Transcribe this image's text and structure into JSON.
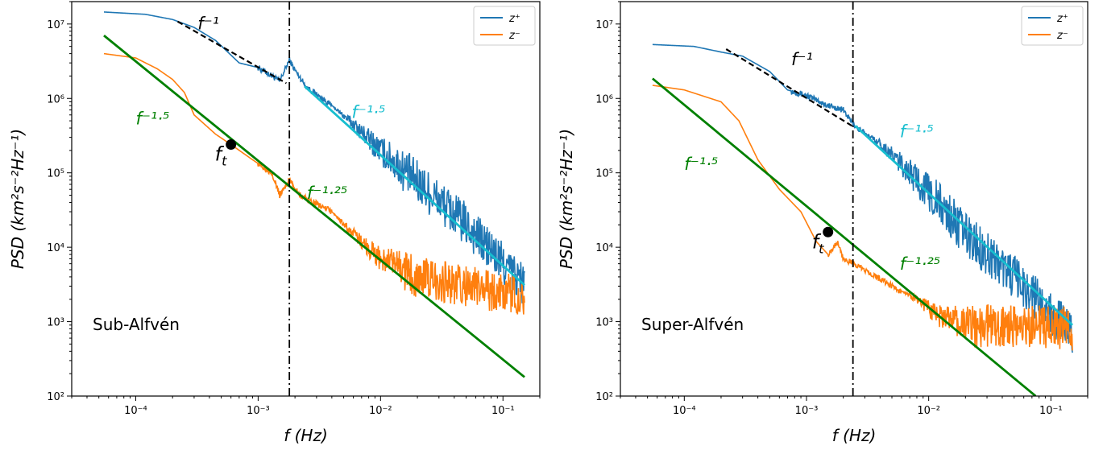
{
  "chart_data": [
    {
      "type": "line",
      "panel_label": "Sub-Alfvén",
      "xlabel": "f (Hz)",
      "ylabel": "PSD (km²s⁻²Hz⁻¹)",
      "xscale": "log",
      "yscale": "log",
      "xlim": [
        3e-05,
        0.2
      ],
      "ylim": [
        100,
        20000000
      ],
      "x_ticks": [
        {
          "value": 0.0001,
          "label": "10⁻⁴"
        },
        {
          "value": 0.001,
          "label": "10⁻³"
        },
        {
          "value": 0.01,
          "label": "10⁻²"
        },
        {
          "value": 0.1,
          "label": "10⁻¹"
        }
      ],
      "y_ticks": [
        {
          "value": 100,
          "label": "10²"
        },
        {
          "value": 1000,
          "label": "10³"
        },
        {
          "value": 10000,
          "label": "10⁴"
        },
        {
          "value": 100000,
          "label": "10⁵"
        },
        {
          "value": 1000000,
          "label": "10⁶"
        },
        {
          "value": 10000000,
          "label": "10⁷"
        }
      ],
      "legend": {
        "placement": "top-right",
        "entries": [
          {
            "label": "z⁺",
            "color": "#1f77b4"
          },
          {
            "label": "z⁻",
            "color": "#ff7f0e"
          }
        ]
      },
      "series": [
        {
          "name": "z⁺",
          "color": "#1f77b4",
          "x_range": [
            5.5e-05,
            0.15
          ],
          "anchors": [
            [
              5.5e-05,
              14500000
            ],
            [
              0.00012,
              13500000
            ],
            [
              0.0002,
              11500000
            ],
            [
              0.0003,
              9000000
            ],
            [
              0.00045,
              6000000
            ],
            [
              0.0007,
              3000000
            ],
            [
              0.001,
              2600000
            ],
            [
              0.0013,
              2000000
            ],
            [
              0.0015,
              1700000
            ],
            [
              0.0018,
              3300000
            ],
            [
              0.002,
              2400000
            ],
            [
              0.0025,
              1400000
            ],
            [
              0.004,
              800000
            ],
            [
              0.006,
              450000
            ],
            [
              0.01,
              200000
            ],
            [
              0.02,
              75000
            ],
            [
              0.05,
              20000
            ],
            [
              0.1,
              6000
            ],
            [
              0.15,
              3200
            ]
          ],
          "noise_onset": 0.004,
          "noise_amp": 0.3
        },
        {
          "name": "z⁻",
          "color": "#ff7f0e",
          "x_range": [
            5.5e-05,
            0.15
          ],
          "anchors": [
            [
              5.5e-05,
              4000000
            ],
            [
              0.0001,
              3500000
            ],
            [
              0.00015,
              2500000
            ],
            [
              0.0002,
              1800000
            ],
            [
              0.00025,
              1200000
            ],
            [
              0.0003,
              600000
            ],
            [
              0.00045,
              330000
            ],
            [
              0.0006,
              240000
            ],
            [
              0.0009,
              150000
            ],
            [
              0.0013,
              100000
            ],
            [
              0.0015,
              50000
            ],
            [
              0.0018,
              80000
            ],
            [
              0.0022,
              50000
            ],
            [
              0.004,
              30000
            ],
            [
              0.006,
              15000
            ],
            [
              0.01,
              7000
            ],
            [
              0.02,
              4000
            ],
            [
              0.05,
              3000
            ],
            [
              0.15,
              2200
            ]
          ],
          "noise_onset": 0.004,
          "noise_amp": 0.28
        }
      ],
      "fits": [
        {
          "label": "f⁻¹",
          "color": "#000000",
          "dash": true,
          "x": [
            0.00022,
            0.0017
          ],
          "y": [
            10800000,
            1600000
          ]
        },
        {
          "label": "f⁻¹·⁵",
          "color": "#17becf",
          "dash": false,
          "x": [
            0.0024,
            0.15
          ],
          "y": [
            1450000,
            3100
          ]
        },
        {
          "label": "f⁻¹·⁵",
          "color": "#008000",
          "dash": false,
          "x": [
            5.5e-05,
            0.15
          ],
          "y": [
            7000000,
            180
          ]
        },
        {
          "label": "f⁻¹·²⁵",
          "color": "#008000",
          "dash": false,
          "x": null,
          "y": null
        }
      ],
      "annotations": [
        {
          "text": "f⁻¹",
          "color": "#000000",
          "x": 0.00032,
          "y": 8500000
        },
        {
          "text": "f⁻¹·⁵",
          "color": "#17becf",
          "x": 0.0058,
          "y": 550000
        },
        {
          "text": "f⁻¹·⁵",
          "color": "#008000",
          "x": 0.0001,
          "y": 450000
        },
        {
          "text": "f⁻¹·²⁵",
          "color": "#008000",
          "x": 0.0025,
          "y": 45000
        }
      ],
      "marker": {
        "label": "f_t",
        "x": 0.0006,
        "y": 240000
      },
      "vline_x": 0.0018
    },
    {
      "type": "line",
      "panel_label": "Super-Alfvén",
      "xlabel": "f (Hz)",
      "ylabel": "PSD (km²s⁻²Hz⁻¹)",
      "xscale": "log",
      "yscale": "log",
      "xlim": [
        3e-05,
        0.2
      ],
      "ylim": [
        100,
        20000000
      ],
      "x_ticks": [
        {
          "value": 0.0001,
          "label": "10⁻⁴"
        },
        {
          "value": 0.001,
          "label": "10⁻³"
        },
        {
          "value": 0.01,
          "label": "10⁻²"
        },
        {
          "value": 0.1,
          "label": "10⁻¹"
        }
      ],
      "y_ticks": [
        {
          "value": 100,
          "label": "10²"
        },
        {
          "value": 1000,
          "label": "10³"
        },
        {
          "value": 10000,
          "label": "10⁴"
        },
        {
          "value": 100000,
          "label": "10⁵"
        },
        {
          "value": 1000000,
          "label": "10⁶"
        },
        {
          "value": 10000000,
          "label": "10⁷"
        }
      ],
      "legend": {
        "placement": "top-right",
        "entries": [
          {
            "label": "z⁺",
            "color": "#1f77b4"
          },
          {
            "label": "z⁻",
            "color": "#ff7f0e"
          }
        ]
      },
      "series": [
        {
          "name": "z⁺",
          "color": "#1f77b4",
          "x_range": [
            5.5e-05,
            0.15
          ],
          "anchors": [
            [
              5.5e-05,
              5300000
            ],
            [
              0.00012,
              5000000
            ],
            [
              0.0002,
              4200000
            ],
            [
              0.0003,
              3700000
            ],
            [
              0.0005,
              2300000
            ],
            [
              0.0007,
              1300000
            ],
            [
              0.001,
              1100000
            ],
            [
              0.0015,
              800000
            ],
            [
              0.002,
              700000
            ],
            [
              0.0023,
              500000
            ],
            [
              0.0026,
              400000
            ],
            [
              0.004,
              250000
            ],
            [
              0.006,
              130000
            ],
            [
              0.01,
              55000
            ],
            [
              0.02,
              15000
            ],
            [
              0.05,
              4000
            ],
            [
              0.1,
              1300
            ],
            [
              0.15,
              700
            ]
          ],
          "noise_onset": 0.003,
          "noise_amp": 0.3
        },
        {
          "name": "z⁻",
          "color": "#ff7f0e",
          "x_range": [
            5.5e-05,
            0.15
          ],
          "anchors": [
            [
              5.5e-05,
              1500000
            ],
            [
              0.0001,
              1300000
            ],
            [
              0.0002,
              900000
            ],
            [
              0.00028,
              500000
            ],
            [
              0.0004,
              150000
            ],
            [
              0.0006,
              60000
            ],
            [
              0.0009,
              30000
            ],
            [
              0.0012,
              12000
            ],
            [
              0.0015,
              8000
            ],
            [
              0.0018,
              12000
            ],
            [
              0.002,
              7000
            ],
            [
              0.003,
              5000
            ],
            [
              0.005,
              3000
            ],
            [
              0.008,
              2000
            ],
            [
              0.012,
              1200
            ],
            [
              0.02,
              900
            ],
            [
              0.05,
              850
            ],
            [
              0.15,
              800
            ]
          ],
          "noise_onset": 0.006,
          "noise_amp": 0.3
        }
      ],
      "fits": [
        {
          "label": "f⁻¹",
          "color": "#000000",
          "dash": true,
          "x": [
            0.00022,
            0.0024
          ],
          "y": [
            4600000,
            420000
          ]
        },
        {
          "label": "f⁻¹·⁵",
          "color": "#17becf",
          "dash": false,
          "x": [
            0.0025,
            0.15
          ],
          "y": [
            430000,
            900
          ]
        },
        {
          "label": "f⁻¹·⁵",
          "color": "#008000",
          "dash": false,
          "x": [
            5.5e-05,
            0.075
          ],
          "y": [
            1850000,
            100
          ]
        },
        {
          "label": "f⁻¹·²⁵",
          "color": "#008000",
          "dash": false,
          "x": null,
          "y": null
        }
      ],
      "annotations": [
        {
          "text": "f⁻¹",
          "color": "#000000",
          "x": 0.00075,
          "y": 2800000
        },
        {
          "text": "f⁻¹·⁵",
          "color": "#17becf",
          "x": 0.0058,
          "y": 300000
        },
        {
          "text": "f⁻¹·⁵",
          "color": "#008000",
          "x": 0.0001,
          "y": 110000
        },
        {
          "text": "f⁻¹·²⁵",
          "color": "#008000",
          "x": 0.0058,
          "y": 5000
        }
      ],
      "marker": {
        "label": "f_t",
        "x": 0.0015,
        "y": 16000
      },
      "vline_x": 0.0024
    }
  ]
}
